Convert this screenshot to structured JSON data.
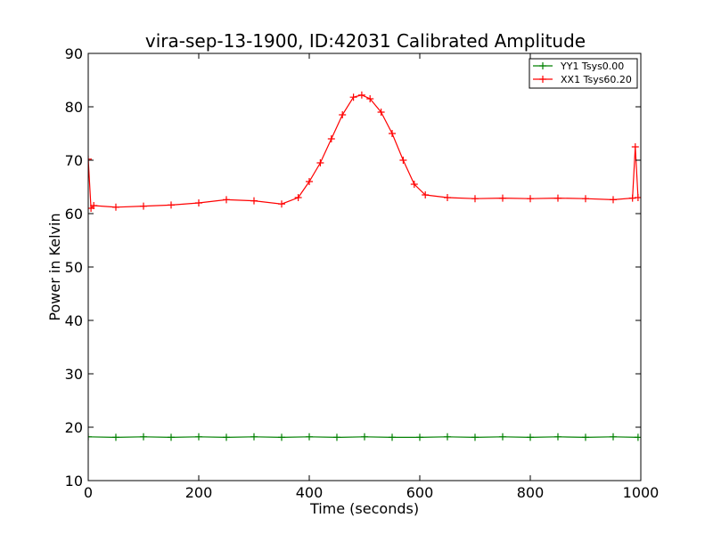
{
  "chart_data": {
    "type": "line",
    "title": "vira-sep-13-1900, ID:42031 Calibrated Amplitude",
    "xlabel": "Time (seconds)",
    "ylabel": "Power in Kelvin",
    "xlim": [
      0,
      1000
    ],
    "ylim": [
      10,
      90
    ],
    "xticks": [
      0,
      200,
      400,
      600,
      800,
      1000
    ],
    "yticks": [
      10,
      20,
      30,
      40,
      50,
      60,
      70,
      80,
      90
    ],
    "grid": false,
    "legend_position": "top-right",
    "marker": "plus",
    "series": [
      {
        "name": "YY1 Tsys0.00",
        "color": "#008000",
        "x": [
          0,
          50,
          100,
          150,
          200,
          250,
          300,
          350,
          400,
          450,
          500,
          550,
          600,
          650,
          700,
          750,
          800,
          850,
          900,
          950,
          995
        ],
        "y": [
          18.2,
          18.1,
          18.2,
          18.1,
          18.2,
          18.1,
          18.2,
          18.1,
          18.2,
          18.1,
          18.2,
          18.1,
          18.1,
          18.2,
          18.1,
          18.2,
          18.1,
          18.2,
          18.1,
          18.2,
          18.1
        ]
      },
      {
        "name": "XX1 Tsys60.20",
        "color": "#ff0000",
        "x": [
          0,
          5,
          10,
          50,
          100,
          150,
          200,
          250,
          300,
          350,
          380,
          400,
          420,
          440,
          460,
          480,
          495,
          510,
          530,
          550,
          570,
          590,
          610,
          650,
          700,
          750,
          800,
          850,
          900,
          950,
          985,
          990,
          995
        ],
        "y": [
          70.2,
          61.0,
          61.5,
          61.2,
          61.4,
          61.6,
          62.0,
          62.6,
          62.4,
          61.8,
          63.0,
          66.0,
          69.5,
          74.0,
          78.5,
          81.8,
          82.2,
          81.5,
          79.0,
          75.0,
          70.0,
          65.5,
          63.5,
          63.0,
          62.8,
          62.9,
          62.8,
          62.9,
          62.8,
          62.6,
          62.9,
          72.5,
          63.0
        ]
      }
    ]
  }
}
